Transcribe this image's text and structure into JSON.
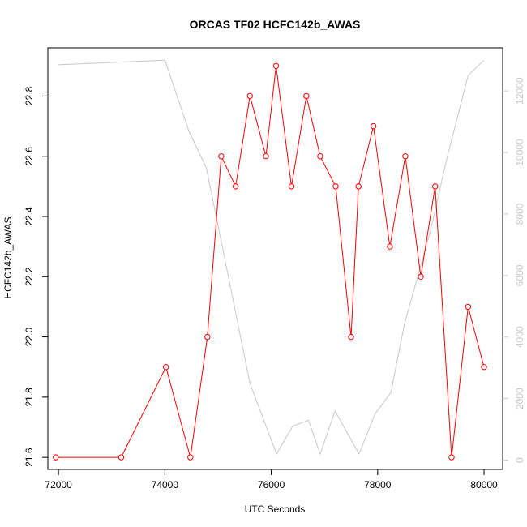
{
  "chart_data": {
    "type": "line",
    "title": "ORCAS TF02 HCFC142b_AWAS",
    "xlabel": "UTC Seconds",
    "ylabel": "HCFC142b_AWAS",
    "xlim": [
      71800,
      80350
    ],
    "ylim": [
      21.56,
      22.96
    ],
    "xticks": [
      72000,
      74000,
      76000,
      78000,
      80000
    ],
    "yticks": [
      21.6,
      21.8,
      22.0,
      22.2,
      22.4,
      22.6,
      22.8
    ],
    "y2lim": [
      -300,
      13400
    ],
    "y2ticks": [
      0,
      2000,
      4000,
      6000,
      8000,
      10000,
      12000
    ],
    "grid": false,
    "series": [
      {
        "color": "#ff0000",
        "axis": "left",
        "marker": "circle",
        "x": [
          71950,
          73180,
          74020,
          74480,
          74800,
          75060,
          75330,
          75600,
          75900,
          76090,
          76380,
          76660,
          76920,
          77210,
          77500,
          77640,
          77920,
          78230,
          78520,
          78810,
          79080,
          79390,
          79700,
          80000
        ],
        "values": [
          21.6,
          21.6,
          21.9,
          21.6,
          22.0,
          22.6,
          22.5,
          22.8,
          22.6,
          22.9,
          22.5,
          22.8,
          22.6,
          22.5,
          22.0,
          22.5,
          22.7,
          22.3,
          22.6,
          22.2,
          22.5,
          21.6,
          22.1,
          21.9
        ]
      },
      {
        "color": "#c8c8c8",
        "axis": "right",
        "marker": "none",
        "x": [
          72000,
          74000,
          74450,
          74780,
          75400,
          75600,
          76100,
          76400,
          76700,
          76920,
          77200,
          77650,
          77950,
          78250,
          78500,
          79000,
          79300,
          79700,
          80000
        ],
        "values": [
          12850,
          13000,
          10700,
          9500,
          4200,
          2500,
          200,
          1100,
          1300,
          200,
          1600,
          200,
          1500,
          2200,
          4400,
          7500,
          9800,
          12500,
          13000
        ]
      }
    ]
  }
}
